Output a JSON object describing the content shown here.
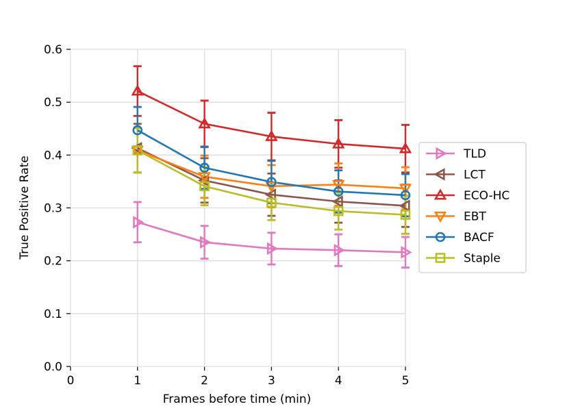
{
  "chart_data": {
    "type": "line",
    "xlabel": "Frames before time (min)",
    "ylabel": "True Positive Rate",
    "xlim": [
      0,
      5
    ],
    "ylim": [
      0.0,
      0.6
    ],
    "xticks": [
      "0",
      "1",
      "2",
      "3",
      "4",
      "5"
    ],
    "yticks": [
      "0.0",
      "0.1",
      "0.2",
      "0.3",
      "0.4",
      "0.5",
      "0.6"
    ],
    "grid": true,
    "legend_position": "right, outside plot",
    "x": [
      1,
      2,
      3,
      4,
      5
    ],
    "series": [
      {
        "name": "TLD",
        "color": "#e377c2",
        "marker": "triangle-right",
        "values": [
          0.273,
          0.235,
          0.223,
          0.22,
          0.216
        ],
        "error": [
          0.038,
          0.031,
          0.03,
          0.03,
          0.029
        ]
      },
      {
        "name": "LCT",
        "color": "#8c564b",
        "marker": "triangle-left",
        "values": [
          0.413,
          0.352,
          0.325,
          0.312,
          0.304
        ],
        "error": [
          0.046,
          0.042,
          0.04,
          0.04,
          0.04
        ]
      },
      {
        "name": "ECO-HC",
        "color": "#d62728",
        "marker": "triangle-up",
        "values": [
          0.521,
          0.459,
          0.435,
          0.421,
          0.412
        ],
        "error": [
          0.047,
          0.044,
          0.045,
          0.045,
          0.045
        ]
      },
      {
        "name": "EBT",
        "color": "#ff7f0e",
        "marker": "triangle-down",
        "values": [
          0.409,
          0.359,
          0.341,
          0.344,
          0.337
        ],
        "error": [
          0.042,
          0.04,
          0.04,
          0.04,
          0.04
        ]
      },
      {
        "name": "BACF",
        "color": "#1f77b4",
        "marker": "circle",
        "values": [
          0.447,
          0.376,
          0.349,
          0.331,
          0.324
        ],
        "error": [
          0.044,
          0.04,
          0.04,
          0.04,
          0.04
        ]
      },
      {
        "name": "Staple",
        "color": "#bcbd22",
        "marker": "square",
        "values": [
          0.409,
          0.341,
          0.31,
          0.294,
          0.287
        ],
        "error": [
          0.042,
          0.036,
          0.033,
          0.035,
          0.036
        ]
      }
    ]
  }
}
